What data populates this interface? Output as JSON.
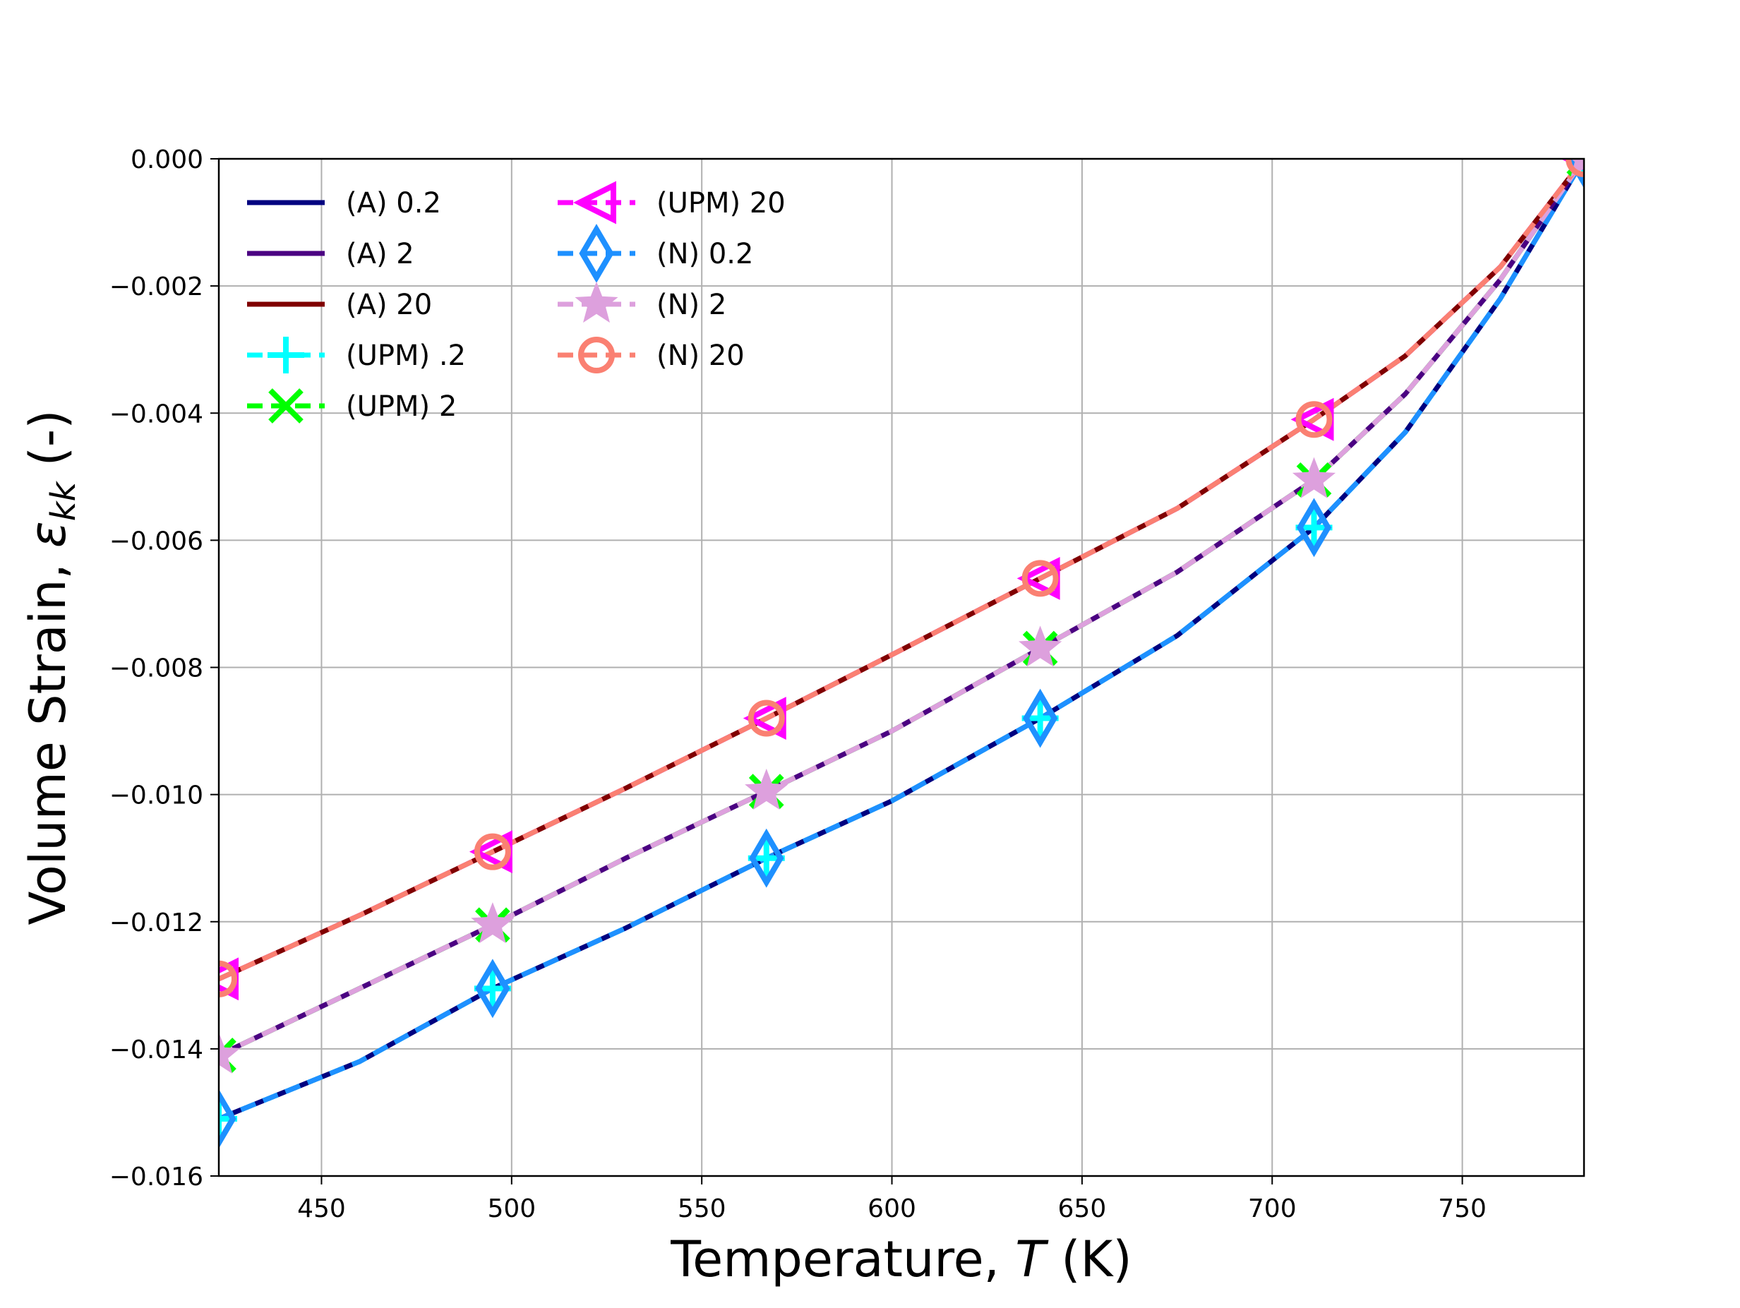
{
  "chart_data": {
    "type": "line",
    "xlabel_prefix": "Temperature, ",
    "xlabel_var": "T",
    "xlabel_suffix": " (K)",
    "ylabel_prefix": "Volume Strain, ",
    "ylabel_var": "ε",
    "ylabel_sub": "kk",
    "ylabel_suffix": " (-)",
    "xlim": [
      423,
      782
    ],
    "ylim": [
      -0.016,
      0.0
    ],
    "xticks": [
      450,
      500,
      550,
      600,
      650,
      700,
      750
    ],
    "xtick_labels": [
      "450",
      "500",
      "550",
      "600",
      "650",
      "700",
      "750"
    ],
    "yticks": [
      0.0,
      -0.002,
      -0.004,
      -0.006,
      -0.008,
      -0.01,
      -0.012,
      -0.014,
      -0.016
    ],
    "ytick_labels": [
      "0.000",
      "−0.002",
      "−0.004",
      "−0.006",
      "−0.008",
      "−0.010",
      "−0.012",
      "−0.014",
      "−0.016"
    ],
    "grid": true,
    "legend_position": "upper-left",
    "legend_columns": 2,
    "series": [
      {
        "name": "(A) 0.2",
        "color": "#000080",
        "style": "solid",
        "marker": "none",
        "x": [
          423,
          460,
          495,
          530,
          567,
          600,
          639,
          675,
          711,
          735,
          760,
          782
        ],
        "y": [
          -0.0151,
          -0.0142,
          -0.01305,
          -0.0121,
          -0.011,
          -0.0101,
          -0.0088,
          -0.0075,
          -0.0058,
          -0.0043,
          -0.0022,
          0.0
        ]
      },
      {
        "name": "(A) 2",
        "color": "#4B0082",
        "style": "solid",
        "marker": "none",
        "x": [
          423,
          460,
          495,
          530,
          567,
          600,
          639,
          675,
          711,
          735,
          760,
          782
        ],
        "y": [
          -0.0141,
          -0.01305,
          -0.01205,
          -0.011,
          -0.00995,
          -0.009,
          -0.0077,
          -0.0065,
          -0.00505,
          -0.0037,
          -0.0019,
          0.0
        ]
      },
      {
        "name": "(A) 20",
        "color": "#800000",
        "style": "solid",
        "marker": "none",
        "x": [
          423,
          460,
          495,
          530,
          567,
          600,
          639,
          675,
          711,
          735,
          760,
          782
        ],
        "y": [
          -0.0129,
          -0.0119,
          -0.0109,
          -0.0099,
          -0.0088,
          -0.0078,
          -0.0066,
          -0.0055,
          -0.0041,
          -0.0031,
          -0.0017,
          0.0
        ]
      },
      {
        "name": "(UPM) .2",
        "color": "#00FFFF",
        "style": "dashed",
        "marker": "plus",
        "x": [
          423,
          460,
          495,
          530,
          567,
          600,
          639,
          675,
          711,
          735,
          760,
          782
        ],
        "y": [
          -0.0151,
          -0.0142,
          -0.01305,
          -0.0121,
          -0.011,
          -0.0101,
          -0.0088,
          -0.0075,
          -0.0058,
          -0.0043,
          -0.0022,
          0.0
        ],
        "marker_x": [
          423,
          495,
          567,
          639,
          711,
          782
        ],
        "marker_y": [
          -0.0151,
          -0.01305,
          -0.011,
          -0.0088,
          -0.0058,
          0.0
        ]
      },
      {
        "name": "(UPM) 2",
        "color": "#00FF00",
        "style": "dashed",
        "marker": "x",
        "x": [
          423,
          460,
          495,
          530,
          567,
          600,
          639,
          675,
          711,
          735,
          760,
          782
        ],
        "y": [
          -0.0141,
          -0.01305,
          -0.01205,
          -0.011,
          -0.00995,
          -0.009,
          -0.0077,
          -0.0065,
          -0.00505,
          -0.0037,
          -0.0019,
          0.0
        ],
        "marker_x": [
          423,
          495,
          567,
          639,
          711,
          782
        ],
        "marker_y": [
          -0.0141,
          -0.01205,
          -0.00995,
          -0.0077,
          -0.00505,
          0.0
        ]
      },
      {
        "name": "(UPM) 20",
        "color": "#FF00FF",
        "style": "dashed",
        "marker": "triangle-left",
        "x": [
          423,
          460,
          495,
          530,
          567,
          600,
          639,
          675,
          711,
          735,
          760,
          782
        ],
        "y": [
          -0.0129,
          -0.0119,
          -0.0109,
          -0.0099,
          -0.0088,
          -0.0078,
          -0.0066,
          -0.0055,
          -0.0041,
          -0.0031,
          -0.0017,
          0.0
        ],
        "marker_x": [
          423,
          495,
          567,
          639,
          711,
          782
        ],
        "marker_y": [
          -0.0129,
          -0.0109,
          -0.0088,
          -0.0066,
          -0.0041,
          0.0
        ]
      },
      {
        "name": "(N) 0.2",
        "color": "#1E90FF",
        "style": "dashed",
        "marker": "diamond",
        "x": [
          423,
          460,
          495,
          530,
          567,
          600,
          639,
          675,
          711,
          735,
          760,
          782
        ],
        "y": [
          -0.0151,
          -0.0142,
          -0.01305,
          -0.0121,
          -0.011,
          -0.0101,
          -0.0088,
          -0.0075,
          -0.0058,
          -0.0043,
          -0.0022,
          0.0
        ],
        "marker_x": [
          423,
          495,
          567,
          639,
          711,
          782
        ],
        "marker_y": [
          -0.0151,
          -0.01305,
          -0.011,
          -0.0088,
          -0.0058,
          0.0
        ]
      },
      {
        "name": "(N) 2",
        "color": "#DDA0DD",
        "style": "dashed",
        "marker": "star",
        "x": [
          423,
          460,
          495,
          530,
          567,
          600,
          639,
          675,
          711,
          735,
          760,
          782
        ],
        "y": [
          -0.0141,
          -0.01305,
          -0.01205,
          -0.011,
          -0.00995,
          -0.009,
          -0.0077,
          -0.0065,
          -0.00505,
          -0.0037,
          -0.0019,
          0.0
        ],
        "marker_x": [
          423,
          495,
          567,
          639,
          711,
          782
        ],
        "marker_y": [
          -0.0141,
          -0.01205,
          -0.00995,
          -0.0077,
          -0.00505,
          0.0
        ]
      },
      {
        "name": "(N) 20",
        "color": "#FA8072",
        "style": "dashed",
        "marker": "circle",
        "x": [
          423,
          460,
          495,
          530,
          567,
          600,
          639,
          675,
          711,
          735,
          760,
          782
        ],
        "y": [
          -0.0129,
          -0.0119,
          -0.0109,
          -0.0099,
          -0.0088,
          -0.0078,
          -0.0066,
          -0.0055,
          -0.0041,
          -0.0031,
          -0.0017,
          0.0
        ],
        "marker_x": [
          423,
          495,
          567,
          639,
          711,
          782
        ],
        "marker_y": [
          -0.0129,
          -0.0109,
          -0.0088,
          -0.0066,
          -0.0041,
          0.0
        ]
      }
    ]
  }
}
